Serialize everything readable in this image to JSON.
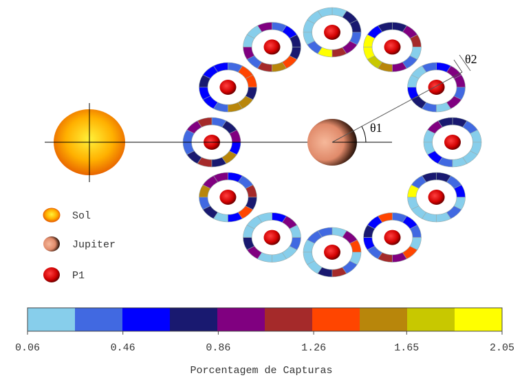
{
  "angles": {
    "theta1": "θ1",
    "theta2": "θ2"
  },
  "legend": [
    {
      "label": "Sol"
    },
    {
      "label": "Jupiter"
    },
    {
      "label": "P1"
    }
  ],
  "colorbar": {
    "colors": [
      "#87ceeb",
      "#4169e1",
      "#0000ff",
      "#191970",
      "#800080",
      "#a52a2a",
      "#ff4500",
      "#b8860b",
      "#c8c800",
      "#ffff00"
    ],
    "range": [
      0.06,
      2.05
    ],
    "ticks": [
      0.06,
      0.46,
      0.86,
      1.26,
      1.65,
      2.05
    ],
    "label": "Porcentagem de Capturas"
  },
  "rings": [
    {
      "segments": [
        0,
        1,
        3,
        3,
        4,
        0,
        0,
        2,
        1,
        0,
        0,
        0
      ]
    },
    {
      "segments": [
        4,
        4,
        2,
        1,
        0,
        0,
        2,
        3,
        1,
        0,
        4,
        1
      ]
    },
    {
      "segments": [
        5,
        4,
        3,
        3,
        2,
        9,
        9,
        8,
        7,
        4,
        1,
        0
      ]
    },
    {
      "segments": [
        3,
        3,
        0,
        0,
        0,
        0,
        0,
        1,
        9,
        5,
        4,
        1
      ]
    },
    {
      "segments": [
        3,
        2,
        1,
        4,
        0,
        0,
        4,
        1,
        5,
        7,
        6,
        3
      ]
    },
    {
      "segments": [
        6,
        6,
        1,
        2,
        2,
        3,
        2,
        2,
        1,
        7,
        7,
        3
      ]
    },
    {
      "segments": [
        4,
        3,
        1,
        5,
        4,
        1,
        1,
        3,
        5,
        3,
        7,
        2
      ]
    },
    {
      "segments": [
        5,
        1,
        2,
        4,
        4,
        7,
        1,
        3,
        0,
        2,
        6,
        3
      ]
    },
    {
      "segments": [
        0,
        4,
        2,
        0,
        0,
        0,
        3,
        4,
        0,
        0,
        0,
        1
      ]
    },
    {
      "segments": [
        6,
        4,
        0,
        1,
        1,
        0,
        0,
        0,
        3,
        5,
        1,
        0
      ]
    },
    {
      "segments": [
        1,
        2,
        1,
        6,
        2,
        3,
        2,
        1,
        5,
        4,
        6,
        0
      ]
    },
    {
      "segments": [
        2,
        1,
        3,
        3,
        1,
        9,
        0,
        0,
        0,
        0,
        1,
        0
      ]
    }
  ]
}
